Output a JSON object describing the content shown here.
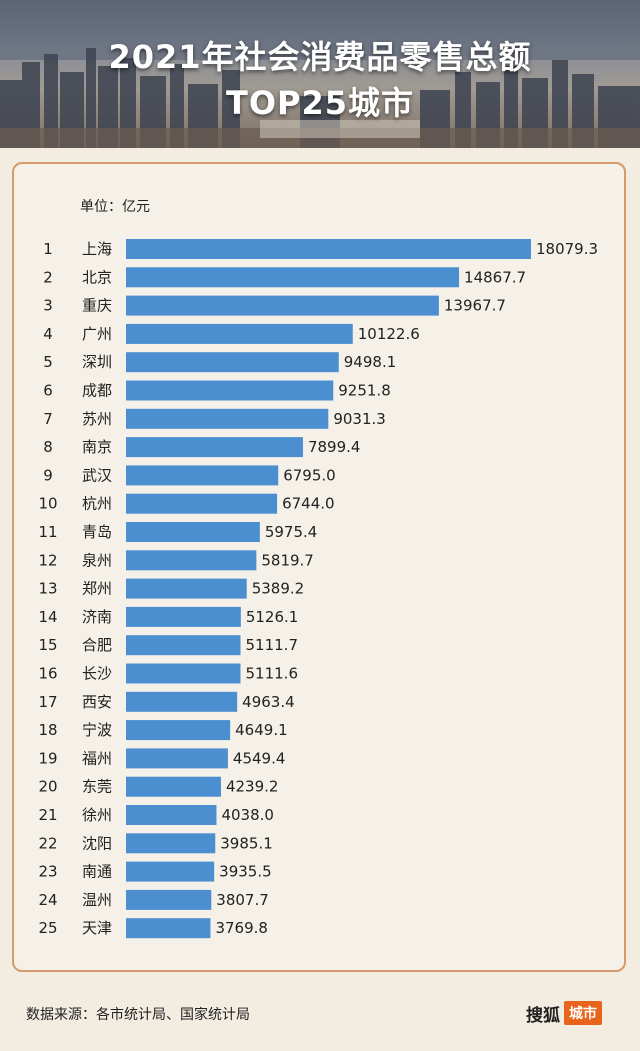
{
  "header": {
    "title_line1": "2021年社会消费品零售总额",
    "title_line2": "TOP25城市"
  },
  "unit_label": "单位：亿元",
  "footer": {
    "source": "数据来源：各市统计局、国家统计局",
    "brand_name": "搜狐",
    "brand_tag": "城市"
  },
  "colors": {
    "bar": "#4b8fd1",
    "panel_border": "#d79a6a",
    "background": "#f3ece1",
    "brand_accent": "#e8631b"
  },
  "chart_data": {
    "type": "bar",
    "orientation": "horizontal",
    "title": "2021年社会消费品零售总额TOP25城市",
    "unit": "亿元",
    "ranks": [
      1,
      2,
      3,
      4,
      5,
      6,
      7,
      8,
      9,
      10,
      11,
      12,
      13,
      14,
      15,
      16,
      17,
      18,
      19,
      20,
      21,
      22,
      23,
      24,
      25
    ],
    "categories": [
      "上海",
      "北京",
      "重庆",
      "广州",
      "深圳",
      "成都",
      "苏州",
      "南京",
      "武汉",
      "杭州",
      "青岛",
      "泉州",
      "郑州",
      "济南",
      "合肥",
      "长沙",
      "西安",
      "宁波",
      "福州",
      "东莞",
      "徐州",
      "沈阳",
      "南通",
      "温州",
      "天津"
    ],
    "values": [
      18079.3,
      14867.7,
      13967.7,
      10122.6,
      9498.1,
      9251.8,
      9031.3,
      7899.4,
      6795.0,
      6744.0,
      5975.4,
      5819.7,
      5389.2,
      5126.1,
      5111.7,
      5111.6,
      4963.4,
      4649.1,
      4549.4,
      4239.2,
      4038.0,
      3985.1,
      3935.5,
      3807.7,
      3769.8
    ],
    "value_labels": [
      "18079.3",
      "14867.7",
      "13967.7",
      "10122.6",
      "9498.1",
      "9251.8",
      "9031.3",
      "7899.4",
      "6795.0",
      "6744.0",
      "5975.4",
      "5819.7",
      "5389.2",
      "5126.1",
      "5111.7",
      "5111.6",
      "4963.4",
      "4649.1",
      "4549.4",
      "4239.2",
      "4038.0",
      "3985.1",
      "3935.5",
      "3807.7",
      "3769.8"
    ],
    "xlim": [
      0,
      18079.3
    ],
    "grid": false,
    "legend": "none"
  }
}
